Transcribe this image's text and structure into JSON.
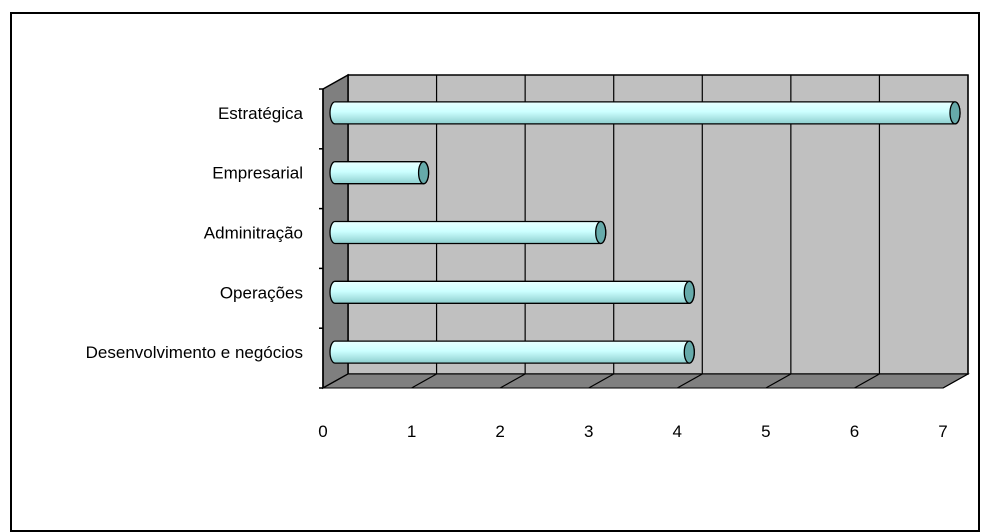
{
  "chart_data": {
    "type": "bar",
    "orientation": "horizontal",
    "style": "3d-cylinder",
    "categories": [
      "Desenvolvimento e negócios",
      "Operações",
      "Adminitração",
      "Empresarial",
      "Estratégica"
    ],
    "values": [
      4,
      4,
      3,
      1,
      7
    ],
    "xlim": [
      0,
      7
    ],
    "xticks": [
      "0",
      "1",
      "2",
      "3",
      "4",
      "5",
      "6",
      "7"
    ],
    "grid": true,
    "legend": "none",
    "colors": {
      "bar_fill": "#ccffff",
      "bar_shade": "#66aaaa",
      "wall": "#c0c0c0",
      "floor": "#808080",
      "side_wall": "#7f7f7f"
    }
  }
}
